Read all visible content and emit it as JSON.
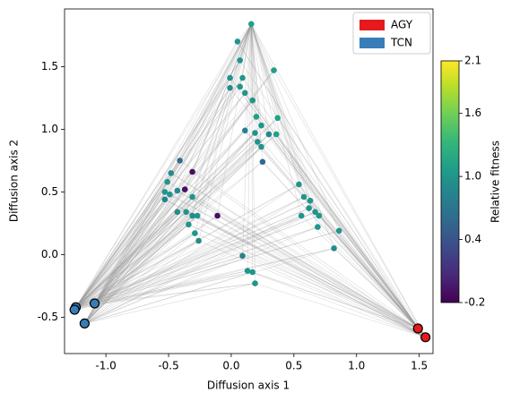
{
  "chart_data": {
    "type": "scatter",
    "xlabel": "Diffusion axis 1",
    "ylabel": "Diffusion axis 2",
    "xlim": [
      -1.33,
      1.61
    ],
    "ylim": [
      -0.79,
      1.96
    ],
    "xticks": [
      {
        "value": -1,
        "label": "-1.0"
      },
      {
        "value": -0.5,
        "label": "-0.5"
      },
      {
        "value": 0,
        "label": "0.0"
      },
      {
        "value": 0.5,
        "label": "0.5"
      },
      {
        "value": 1,
        "label": "1.0"
      },
      {
        "value": 1.5,
        "label": "1.5"
      }
    ],
    "yticks": [
      {
        "value": -0.5,
        "label": "-0.5"
      },
      {
        "value": 0,
        "label": "0.0"
      },
      {
        "value": 0.5,
        "label": "0.5"
      },
      {
        "value": 1,
        "label": "1.0"
      },
      {
        "value": 1.5,
        "label": "1.5"
      }
    ],
    "points": {
      "x": [
        0.16,
        0.05,
        0.07,
        0.34,
        -0.01,
        0.09,
        -0.01,
        0.07,
        0.11,
        0.17,
        0.2,
        0.37,
        0.24,
        0.11,
        0.19,
        0.3,
        0.36,
        0.21,
        0.24,
        0.25,
        -0.41,
        -0.31,
        -0.48,
        -0.51,
        -0.37,
        -0.43,
        -0.53,
        -0.49,
        -0.53,
        -0.31,
        -0.43,
        -0.36,
        -0.31,
        -0.27,
        -0.34,
        -0.29,
        -0.26,
        -0.11,
        0.54,
        0.58,
        0.63,
        0.62,
        0.67,
        0.7,
        0.56,
        0.69,
        0.86,
        0.82,
        0.09,
        0.13,
        0.17,
        0.19
      ],
      "y": [
        1.84,
        1.7,
        1.55,
        1.47,
        1.41,
        1.41,
        1.33,
        1.34,
        1.29,
        1.23,
        1.1,
        1.09,
        1.03,
        0.99,
        0.97,
        0.96,
        0.96,
        0.9,
        0.86,
        0.74,
        0.75,
        0.66,
        0.65,
        0.58,
        0.52,
        0.51,
        0.5,
        0.48,
        0.44,
        0.46,
        0.34,
        0.34,
        0.31,
        0.31,
        0.24,
        0.17,
        0.11,
        0.31,
        0.56,
        0.46,
        0.43,
        0.37,
        0.34,
        0.31,
        0.31,
        0.22,
        0.19,
        0.05,
        -0.01,
        -0.13,
        -0.14,
        -0.23
      ],
      "values": [
        1.1,
        1.0,
        1.0,
        1.1,
        1.0,
        1.0,
        0.9,
        1.0,
        1.0,
        1.0,
        1.1,
        1.1,
        1.0,
        0.8,
        1.0,
        0.9,
        1.1,
        1.0,
        1.0,
        0.6,
        0.6,
        -0.1,
        0.9,
        1.0,
        -0.1,
        0.9,
        1.0,
        1.0,
        0.8,
        1.0,
        0.9,
        1.0,
        0.9,
        1.0,
        1.0,
        1.0,
        0.9,
        -0.1,
        1.0,
        1.0,
        1.0,
        1.0,
        1.0,
        1.0,
        1.0,
        1.0,
        1.0,
        0.9,
        0.8,
        1.0,
        1.0,
        1.0
      ]
    },
    "series": [
      {
        "name": "AGY",
        "color": "#e41a1c",
        "x": [
          1.49,
          1.55
        ],
        "values": [
          -0.59,
          -0.66
        ]
      },
      {
        "name": "TCN",
        "color": "#377eb8",
        "x": [
          -1.24,
          -1.25,
          -1.09,
          -1.17
        ],
        "values": [
          -0.42,
          -0.44,
          -0.39,
          -0.55
        ]
      }
    ],
    "colorbar": {
      "label": "Relative fitness",
      "lim": [
        -0.2,
        2.1
      ],
      "ticks": [
        {
          "value": -0.2,
          "label": "-0.2"
        },
        0.4,
        {
          "value": 1,
          "label": "1.0"
        },
        1.6,
        2.1
      ]
    },
    "legend": "upper right"
  }
}
